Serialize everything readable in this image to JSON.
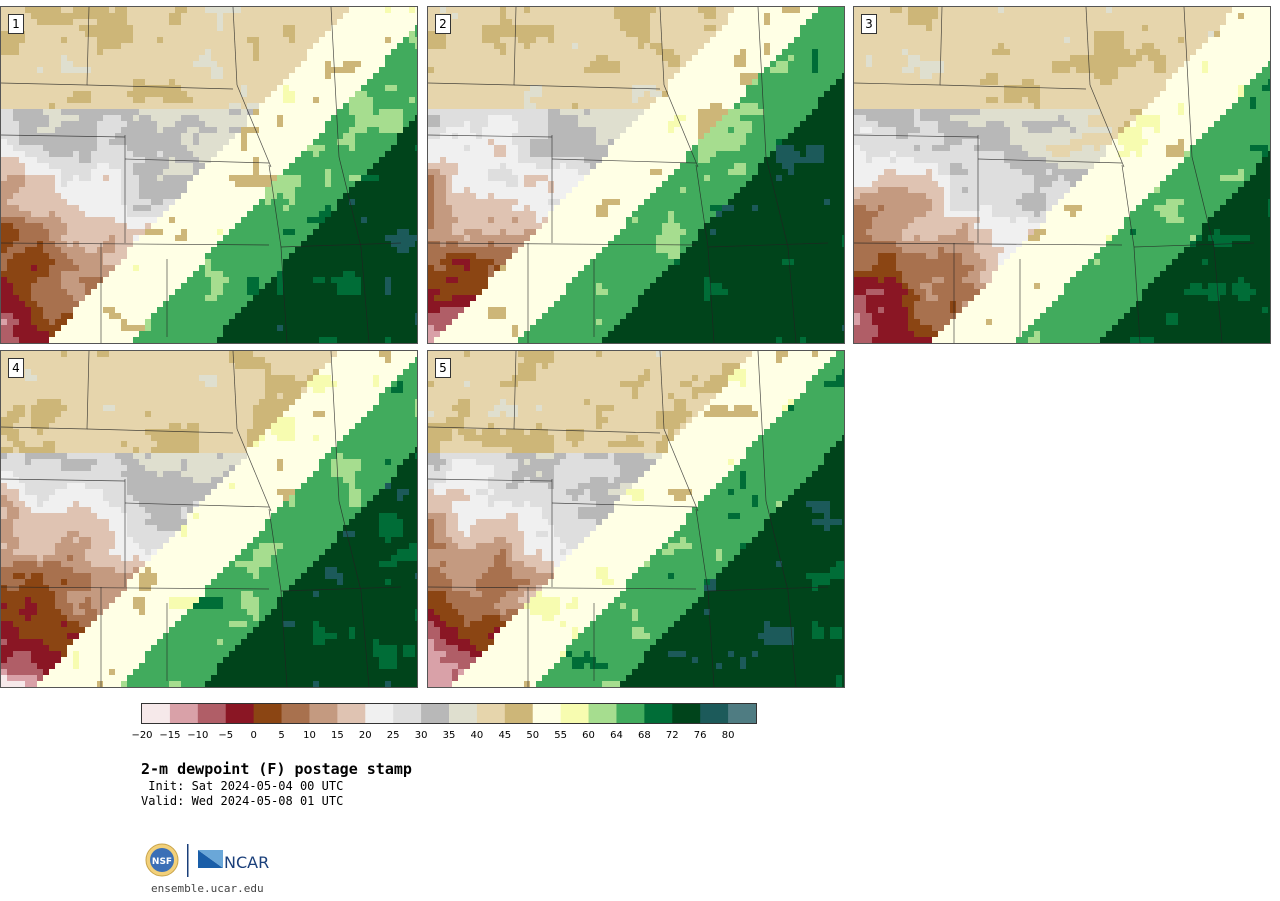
{
  "panels": [
    {
      "label": "1"
    },
    {
      "label": "2"
    },
    {
      "label": "3"
    },
    {
      "label": "4"
    },
    {
      "label": "5"
    }
  ],
  "colorbar": {
    "colors": [
      "#f6e9ea",
      "#d9a1a8",
      "#b05e67",
      "#8a1624",
      "#8b4513",
      "#a8714e",
      "#c49a80",
      "#dfc3b2",
      "#f0f0f0",
      "#dedede",
      "#b8b8b8",
      "#dfdfcf",
      "#e6d5ac",
      "#cdb678",
      "#ffffe5",
      "#f7fcb0",
      "#a6dd8f",
      "#41ab5d",
      "#006d37",
      "#00441b",
      "#1c5a5a",
      "#4f7c82"
    ],
    "tick_labels": [
      "−20",
      "−15",
      "−10",
      "−5",
      "0",
      "5",
      "10",
      "15",
      "20",
      "25",
      "30",
      "35",
      "40",
      "45",
      "50",
      "55",
      "60",
      "64",
      "68",
      "72",
      "76",
      "80"
    ]
  },
  "title": "2-m dewpoint (F) postage stamp",
  "init": " Init: Sat 2024-05-04 00 UTC",
  "valid": "Valid: Wed 2024-05-08 01 UTC",
  "logo": {
    "nsf": "NSF",
    "ncar": "NCAR"
  },
  "url": "ensemble.ucar.edu"
}
